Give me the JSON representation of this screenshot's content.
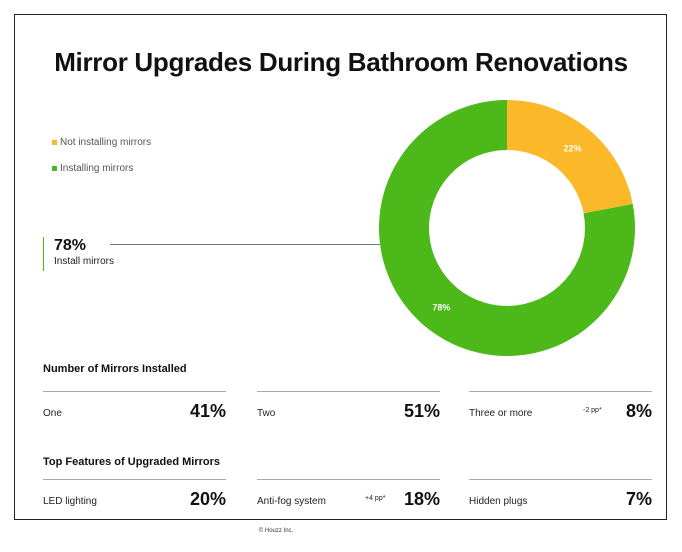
{
  "title": "Mirror Upgrades During Bathroom Renovations",
  "legend": [
    {
      "label": "Not installing mirrors",
      "color": "#fbb829"
    },
    {
      "label": "Installing mirrors",
      "color": "#4cb81a"
    }
  ],
  "highlight": {
    "value": "78%",
    "label": "Install mirrors"
  },
  "chart_data": {
    "type": "pie",
    "donut": true,
    "slices": [
      {
        "label": "Not installing mirrors",
        "value": 22,
        "display": "22%",
        "color": "#fbb829"
      },
      {
        "label": "Installing mirrors",
        "value": 78,
        "display": "78%",
        "color": "#4cb81a"
      }
    ],
    "legend_position": "left",
    "title": "Mirror Upgrades During Bathroom Renovations"
  },
  "mirrors_installed": {
    "heading": "Number of Mirrors Installed",
    "items": [
      {
        "label": "One",
        "note": "",
        "value": "41%"
      },
      {
        "label": "Two",
        "note": "",
        "value": "51%"
      },
      {
        "label": "Three or more",
        "note": "-2 pp*",
        "value": "8%"
      }
    ]
  },
  "top_features": {
    "heading": "Top Features of Upgraded Mirrors",
    "items": [
      {
        "label": "LED lighting",
        "note": "",
        "value": "20%"
      },
      {
        "label": "Anti-fog system",
        "note": "+4 pp*",
        "value": "18%"
      },
      {
        "label": "Hidden plugs",
        "note": "",
        "value": "7%"
      }
    ]
  },
  "footer": "© Houzz Inc."
}
